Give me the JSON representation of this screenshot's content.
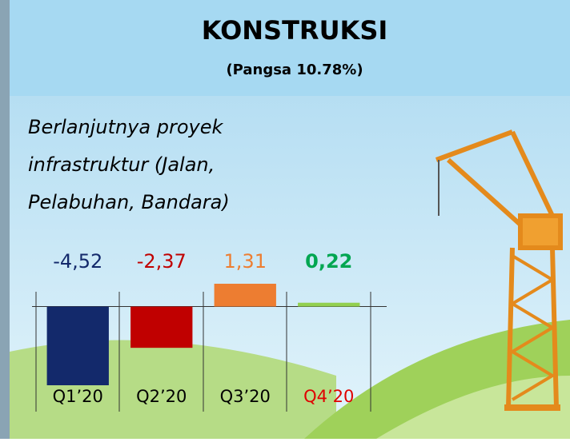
{
  "header": {
    "title": "KONSTRUKSI",
    "subtitle": "(Pangsa 10.78%)"
  },
  "description": {
    "lines": [
      "Berlanjutnya proyek",
      "infrastruktur (Jalan,",
      "Pelabuhan, Bandara)"
    ]
  },
  "chart_data": {
    "type": "bar",
    "categories": [
      "Q1’20",
      "Q2’20",
      "Q3’20",
      "Q4’20"
    ],
    "values": [
      -4.52,
      -2.37,
      1.31,
      0.22
    ],
    "value_labels": [
      "-4,52",
      "-2,37",
      "1,31",
      "0,22"
    ],
    "colors": [
      "#13296b",
      "#c00000",
      "#ed7d31",
      "#92d050"
    ],
    "label_colors": [
      "#13296b",
      "#c00000",
      "#ed7d31",
      "#00a651"
    ],
    "category_colors": [
      "#000000",
      "#000000",
      "#000000",
      "#e00000"
    ]
  }
}
